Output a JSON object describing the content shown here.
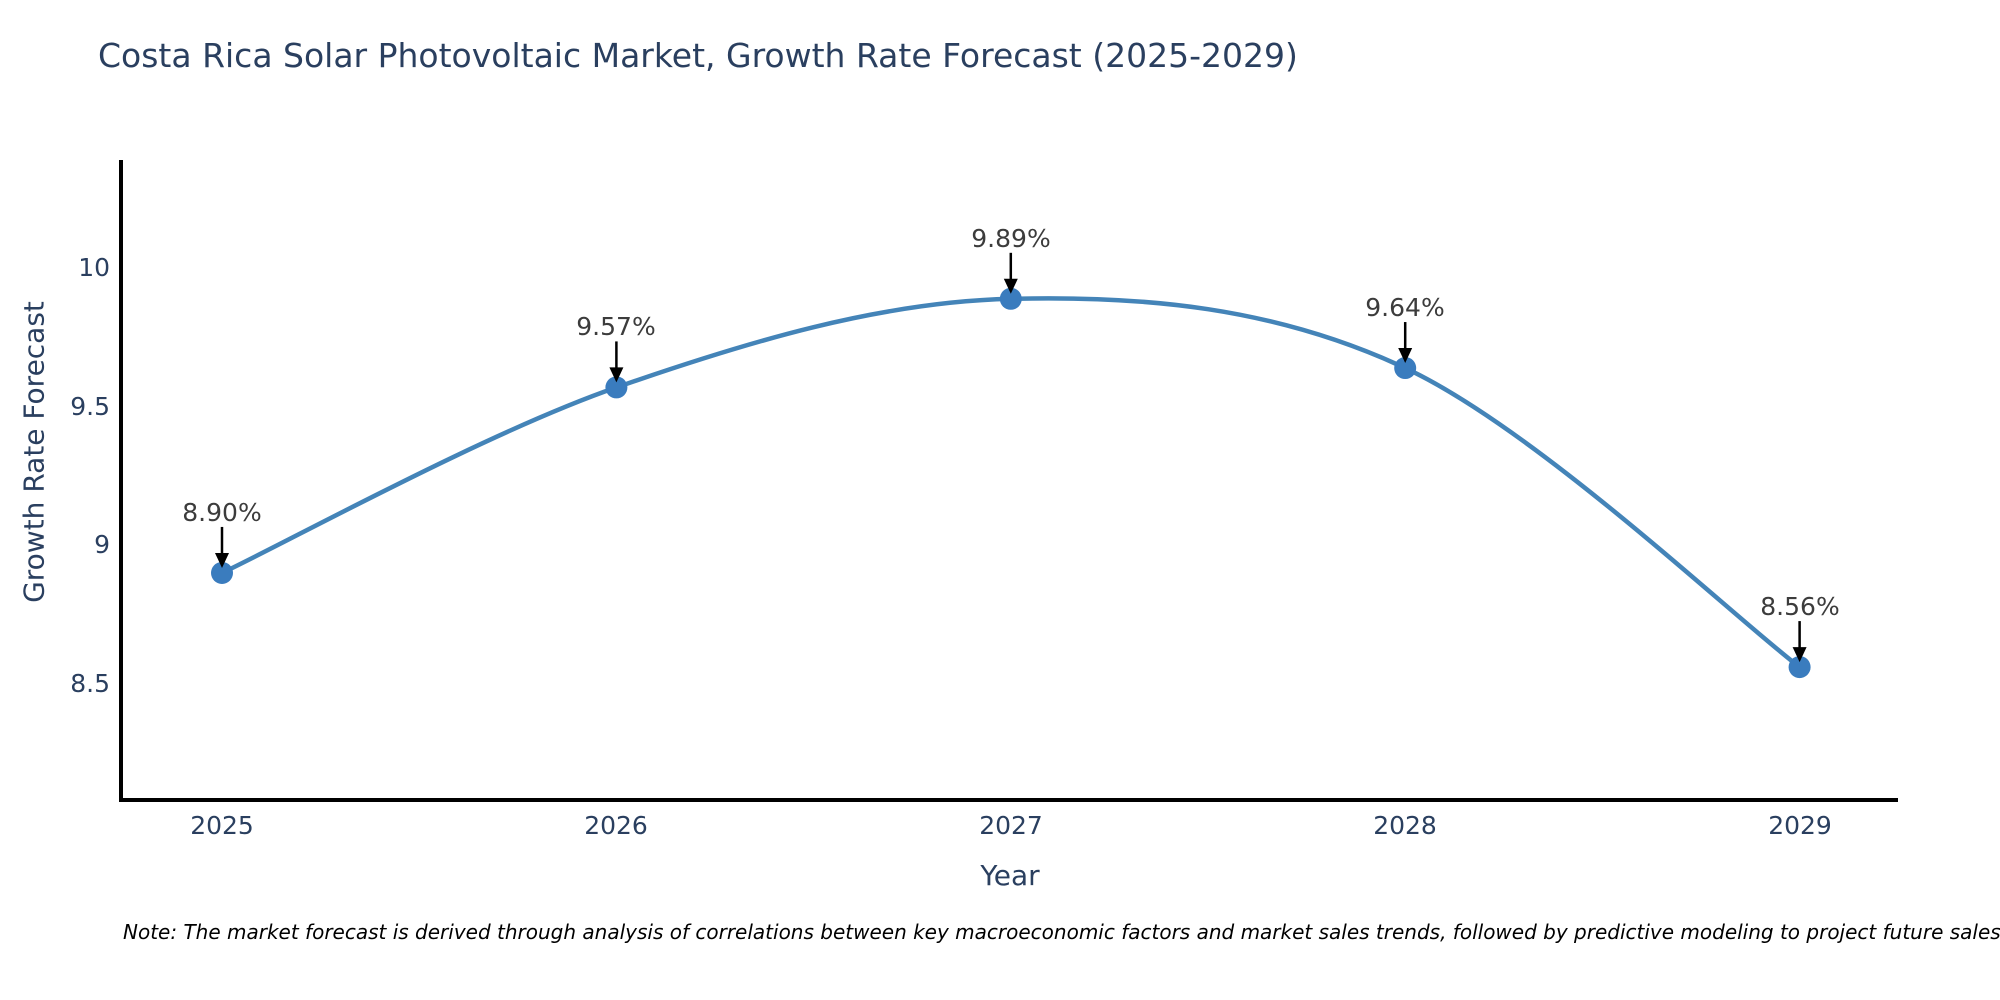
{
  "chart_data": {
    "type": "line",
    "title": "Costa Rica Solar Photovoltaic Market, Growth Rate Forecast (2025-2029)",
    "xlabel": "Year",
    "ylabel": "Growth Rate Forecast",
    "x": [
      2025,
      2026,
      2027,
      2028,
      2029
    ],
    "series": [
      {
        "name": "Growth Rate Forecast",
        "values": [
          8.9,
          9.57,
          9.89,
          9.64,
          8.56
        ]
      }
    ],
    "values": [
      8.9,
      9.57,
      9.89,
      9.64,
      8.56
    ],
    "point_labels": [
      "8.90%",
      "9.57%",
      "9.89%",
      "9.64%",
      "8.56%"
    ],
    "yticks": [
      8.5,
      9,
      9.5,
      10
    ],
    "ytick_labels_top_to_bottom": [
      "10",
      "9.5",
      "9",
      "8.5"
    ],
    "ylim": [
      8.08,
      10.39
    ],
    "line_shape": "spline",
    "grid": false,
    "legend": "none",
    "markers": true,
    "annotation_arrows": true,
    "note": "Note: The market forecast is derived through analysis of correlations between key macroeconomic factors and market sales trends, followed by predictive modeling to project future sales",
    "colors": {
      "line": "#4484b8",
      "marker": "#3a7cbe",
      "arrow": "#000000",
      "axis": "#000000",
      "title_text": "#2a3f5f",
      "tick_text": "#2a3f5f",
      "annotation_text": "#3c3c3c",
      "background": "#ffffff"
    }
  }
}
